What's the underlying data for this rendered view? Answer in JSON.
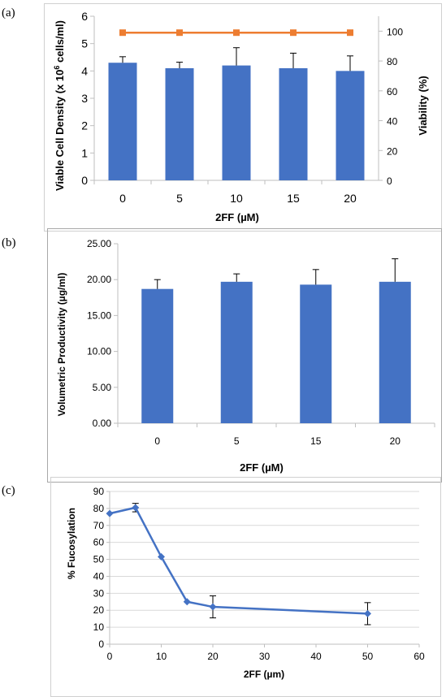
{
  "chart_data": [
    {
      "panel": "(a)",
      "type": "bar",
      "categories": [
        "0",
        "5",
        "10",
        "15",
        "20"
      ],
      "series": [
        {
          "name": "",
          "kind": "bar",
          "axis": "left",
          "values": [
            4.3,
            4.1,
            4.2,
            4.1,
            4.0
          ],
          "errors": [
            0.22,
            0.22,
            0.65,
            0.55,
            0.55
          ],
          "color": "#4472C4"
        },
        {
          "name": "",
          "kind": "line",
          "axis": "right",
          "values": [
            99,
            99,
            99,
            99,
            99
          ],
          "color": "#ED7D31"
        }
      ],
      "xlabel": "2FF (µM)",
      "ylabel": "Viable Cell Density (x 10",
      "ylabel_sup": "6",
      "ylabel_end": " cells/ml)",
      "y2label": "Viability (%)",
      "ylim": [
        0,
        6
      ],
      "yticks": [
        "0",
        "1",
        "2",
        "3",
        "4",
        "5",
        "6"
      ],
      "y2lim": [
        0,
        110
      ],
      "y2ticks": [
        "0",
        "20",
        "40",
        "60",
        "80",
        "100"
      ],
      "grid": false,
      "legend": "none"
    },
    {
      "panel": "(b)",
      "type": "bar",
      "categories": [
        "0",
        "5",
        "15",
        "20"
      ],
      "values": [
        18.7,
        19.7,
        19.3,
        19.7
      ],
      "errors": [
        1.3,
        1.1,
        2.1,
        3.2
      ],
      "color": "#4472C4",
      "xlabel": "2FF (µM)",
      "ylabel": "Volumetric Productivity (µg/ml)",
      "ylim": [
        0,
        25
      ],
      "yticks": [
        "0.00",
        "5.00",
        "10.00",
        "15.00",
        "20.00",
        "25.00"
      ],
      "grid": false,
      "legend": "none"
    },
    {
      "panel": "(c)",
      "type": "line",
      "x": [
        0,
        5,
        10,
        15,
        20,
        50
      ],
      "values": [
        77,
        80.5,
        51.5,
        25,
        22,
        18
      ],
      "errors": [
        0,
        2.5,
        0,
        0,
        6.5,
        6.5
      ],
      "color": "#4472C4",
      "xlabel": "2FF (µm)",
      "ylabel": "% Fucosylation",
      "xlim": [
        0,
        60
      ],
      "xticks": [
        "0",
        "10",
        "20",
        "30",
        "40",
        "50",
        "60"
      ],
      "ylim": [
        0,
        90
      ],
      "yticks": [
        "0",
        "10",
        "20",
        "30",
        "40",
        "50",
        "60",
        "70",
        "80",
        "90"
      ],
      "grid": true,
      "legend": "none"
    }
  ]
}
